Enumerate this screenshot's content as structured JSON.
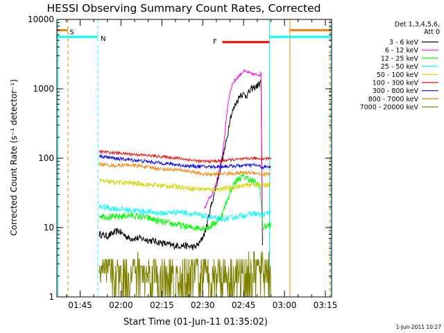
{
  "chart_data": {
    "type": "line",
    "title": "HESSI Observing Summary Count Rates, Corrected",
    "xlabel": "Start Time (01-Jun-11 01:35:02)",
    "ylabel": "Corrected Count Rate (s⁻¹ detector⁻¹)",
    "y_scale": "log",
    "ylim": [
      1,
      10000
    ],
    "xlim_minutes": [
      1.47,
      102.3
    ],
    "x_ticks": [
      {
        "t": 10,
        "label": "01:45"
      },
      {
        "t": 25,
        "label": "02:00"
      },
      {
        "t": 40,
        "label": "02:15"
      },
      {
        "t": 55,
        "label": "02:30"
      },
      {
        "t": 70,
        "label": "02:45"
      },
      {
        "t": 85,
        "label": "03:00"
      },
      {
        "t": 100,
        "label": "03:15"
      }
    ],
    "y_ticks": [
      {
        "v": 1,
        "label": "1"
      },
      {
        "v": 10,
        "label": "10"
      },
      {
        "v": 100,
        "label": "100"
      },
      {
        "v": 1000,
        "label": "1000"
      },
      {
        "v": 10000,
        "label": "10000"
      }
    ],
    "legend": {
      "placement": "right",
      "header": [
        "Det 1,3,4,5,6,",
        "Att 0"
      ]
    },
    "series": [
      {
        "name": "3 - 6 keV",
        "color": "#000000",
        "points": [
          [
            17,
            8
          ],
          [
            20,
            7.5
          ],
          [
            24,
            9
          ],
          [
            28,
            7
          ],
          [
            32,
            7
          ],
          [
            36,
            6.5
          ],
          [
            40,
            6
          ],
          [
            44,
            5.5
          ],
          [
            48,
            5.5
          ],
          [
            52,
            5.2
          ],
          [
            54,
            6
          ],
          [
            56,
            9
          ],
          [
            58,
            20
          ],
          [
            60,
            40
          ],
          [
            62,
            90
          ],
          [
            64,
            200
          ],
          [
            65,
            380
          ],
          [
            67,
            600
          ],
          [
            69,
            850
          ],
          [
            71,
            800
          ],
          [
            73,
            1000
          ],
          [
            75,
            1100
          ],
          [
            76.4,
            1250
          ],
          [
            77,
            3
          ]
        ]
      },
      {
        "name": "6 - 12 keV",
        "color": "#ff00ff",
        "points": [
          [
            55.5,
            18
          ],
          [
            57,
            25
          ],
          [
            58.5,
            30
          ],
          [
            60,
            45
          ],
          [
            62,
            100
          ],
          [
            63,
            200
          ],
          [
            64,
            500
          ],
          [
            65,
            900
          ],
          [
            66,
            1200
          ],
          [
            68,
            1500
          ],
          [
            70,
            1800
          ],
          [
            72,
            1700
          ],
          [
            74,
            1600
          ],
          [
            76,
            1600
          ],
          [
            76.4,
            1700
          ],
          [
            77,
            3.5
          ]
        ]
      },
      {
        "name": "12 - 25 keV",
        "color": "#00ff00",
        "points": [
          [
            17,
            15
          ],
          [
            22,
            14
          ],
          [
            28,
            15
          ],
          [
            34,
            14
          ],
          [
            40,
            12
          ],
          [
            46,
            11
          ],
          [
            50,
            10
          ],
          [
            54,
            10
          ],
          [
            57,
            10
          ],
          [
            60,
            12
          ],
          [
            62,
            15
          ],
          [
            64,
            25
          ],
          [
            66,
            40
          ],
          [
            68,
            50
          ],
          [
            70,
            55
          ],
          [
            72,
            50
          ],
          [
            74,
            45
          ],
          [
            76,
            40
          ],
          [
            77,
            10
          ],
          [
            80,
            11
          ]
        ]
      },
      {
        "name": "25 - 50 keV",
        "color": "#00ffff",
        "points": [
          [
            17,
            20
          ],
          [
            22,
            19
          ],
          [
            28,
            18
          ],
          [
            34,
            17
          ],
          [
            40,
            16
          ],
          [
            46,
            17
          ],
          [
            50,
            16
          ],
          [
            54,
            15
          ],
          [
            58,
            14
          ],
          [
            62,
            13
          ],
          [
            66,
            14
          ],
          [
            70,
            15
          ],
          [
            74,
            16
          ],
          [
            77,
            15
          ],
          [
            80,
            17
          ]
        ]
      },
      {
        "name": "50 - 100 keV",
        "color": "#d4d400",
        "points": [
          [
            17,
            47
          ],
          [
            22,
            45
          ],
          [
            28,
            44
          ],
          [
            34,
            42
          ],
          [
            40,
            40
          ],
          [
            46,
            39
          ],
          [
            50,
            37
          ],
          [
            54,
            36
          ],
          [
            58,
            35
          ],
          [
            62,
            36
          ],
          [
            66,
            38
          ],
          [
            70,
            40
          ],
          [
            74,
            42
          ],
          [
            77,
            41
          ],
          [
            80,
            42
          ]
        ]
      },
      {
        "name": "100 - 300 keV",
        "color": "#ff0000",
        "points": [
          [
            17,
            125
          ],
          [
            22,
            120
          ],
          [
            28,
            115
          ],
          [
            34,
            110
          ],
          [
            40,
            105
          ],
          [
            46,
            100
          ],
          [
            50,
            95
          ],
          [
            54,
            90
          ],
          [
            58,
            90
          ],
          [
            62,
            92
          ],
          [
            66,
            95
          ],
          [
            70,
            97
          ],
          [
            74,
            100
          ],
          [
            77,
            98
          ],
          [
            80,
            100
          ]
        ]
      },
      {
        "name": "300 - 800 keV",
        "color": "#0000ff",
        "points": [
          [
            17,
            108
          ],
          [
            22,
            100
          ],
          [
            28,
            95
          ],
          [
            34,
            90
          ],
          [
            40,
            85
          ],
          [
            46,
            80
          ],
          [
            50,
            77
          ],
          [
            54,
            76
          ],
          [
            58,
            75
          ],
          [
            62,
            76
          ],
          [
            66,
            77
          ],
          [
            70,
            78
          ],
          [
            74,
            80
          ],
          [
            77,
            74
          ],
          [
            80,
            75
          ]
        ]
      },
      {
        "name": "800 - 7000 keV",
        "color": "#ff8000",
        "points": [
          [
            17,
            82
          ],
          [
            22,
            78
          ],
          [
            28,
            80
          ],
          [
            34,
            75
          ],
          [
            40,
            70
          ],
          [
            46,
            68
          ],
          [
            50,
            65
          ],
          [
            54,
            60
          ],
          [
            58,
            58
          ],
          [
            62,
            60
          ],
          [
            66,
            60
          ],
          [
            70,
            62
          ],
          [
            74,
            62
          ],
          [
            77,
            58
          ],
          [
            80,
            60
          ]
        ]
      },
      {
        "name": "7000 - 20000 keV",
        "color": "#808000",
        "points": [
          [
            17,
            1.6
          ],
          [
            19,
            2.2
          ],
          [
            21,
            1.6
          ],
          [
            23,
            2.2
          ],
          [
            25,
            2.8
          ],
          [
            27,
            2.2
          ],
          [
            29,
            3
          ],
          [
            31,
            3.5
          ],
          [
            33,
            3
          ],
          [
            35,
            2.5
          ],
          [
            37,
            3
          ],
          [
            39,
            2.5
          ],
          [
            41,
            2
          ],
          [
            43,
            1.6
          ],
          [
            45,
            1.8
          ],
          [
            47,
            1.5
          ],
          [
            49,
            2
          ],
          [
            51,
            1.6
          ],
          [
            53,
            2.5
          ],
          [
            55,
            2
          ],
          [
            57,
            2.8
          ],
          [
            59,
            2
          ],
          [
            61,
            2.5
          ],
          [
            63,
            3
          ],
          [
            65,
            2.5
          ],
          [
            67,
            3
          ],
          [
            69,
            2.5
          ],
          [
            71,
            3.2
          ],
          [
            73,
            2.8
          ],
          [
            75,
            3.5
          ],
          [
            77,
            3
          ],
          [
            79,
            3.5
          ],
          [
            80,
            3.2
          ]
        ]
      }
    ],
    "state_bars": [
      {
        "label": "S",
        "color": "#ff8000",
        "start": 1.47,
        "end": 5.5,
        "level": 7000,
        "label_at": 7
      },
      {
        "label": "S",
        "color": "#ff8000",
        "start": 87,
        "end": 102.3,
        "level": 7000
      },
      {
        "label": "N",
        "color": "#00ffff",
        "start": 1.47,
        "end": 16.5,
        "level": 5600,
        "label_at": 18.5
      },
      {
        "label": "N",
        "color": "#00ffff",
        "start": 79.5,
        "end": 102.3,
        "level": 5600
      },
      {
        "label": "F",
        "color": "#ff0000",
        "start": 62.2,
        "end": 79.5,
        "level": 4700,
        "label_at": 59.5
      }
    ],
    "state_lines": [
      {
        "color": "#ff8000",
        "t": 5.5,
        "style": "dashed"
      },
      {
        "color": "#00ffff",
        "t": 16.5,
        "style": "dashed"
      },
      {
        "color": "#00ffff",
        "t": 1.9,
        "style": "solid"
      },
      {
        "color": "#00ffff",
        "t": 79.5,
        "style": "solid"
      },
      {
        "color": "#ff8000",
        "t": 87,
        "style": "solid"
      },
      {
        "color": "#00ffff",
        "t": 102,
        "style": "dashed"
      },
      {
        "color": "#ff8000",
        "t": 101.6,
        "style": "dashed"
      }
    ]
  },
  "footer": {
    "timestamp": "1-Jun-2011 10:27"
  }
}
